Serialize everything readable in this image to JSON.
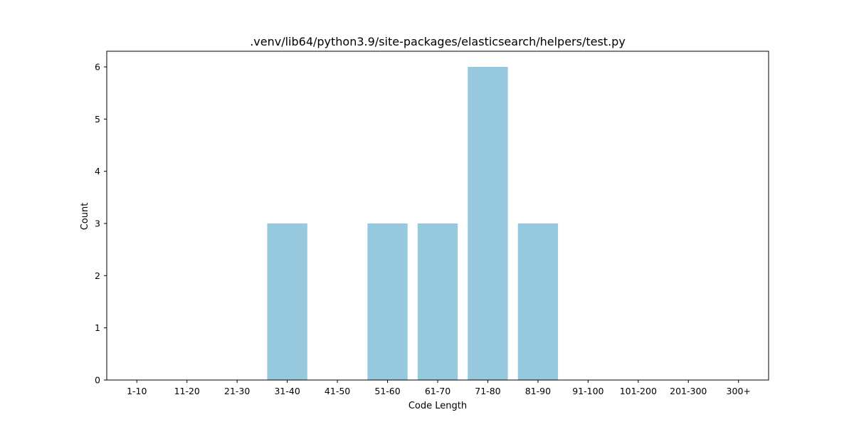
{
  "chart_data": {
    "type": "bar",
    "title": ".venv/lib64/python3.9/site-packages/elasticsearch/helpers/test.py",
    "xlabel": "Code Length",
    "ylabel": "Count",
    "categories": [
      "1-10",
      "11-20",
      "21-30",
      "31-40",
      "41-50",
      "51-60",
      "61-70",
      "71-80",
      "81-90",
      "91-100",
      "101-200",
      "201-300",
      "300+"
    ],
    "values": [
      0,
      0,
      0,
      3,
      0,
      3,
      3,
      6,
      3,
      0,
      0,
      0,
      0
    ],
    "ylim": [
      0,
      6.3
    ],
    "yticks": [
      0,
      1,
      2,
      3,
      4,
      5,
      6
    ],
    "bar_color": "#96c9dd",
    "grid": false,
    "legend": "none"
  }
}
